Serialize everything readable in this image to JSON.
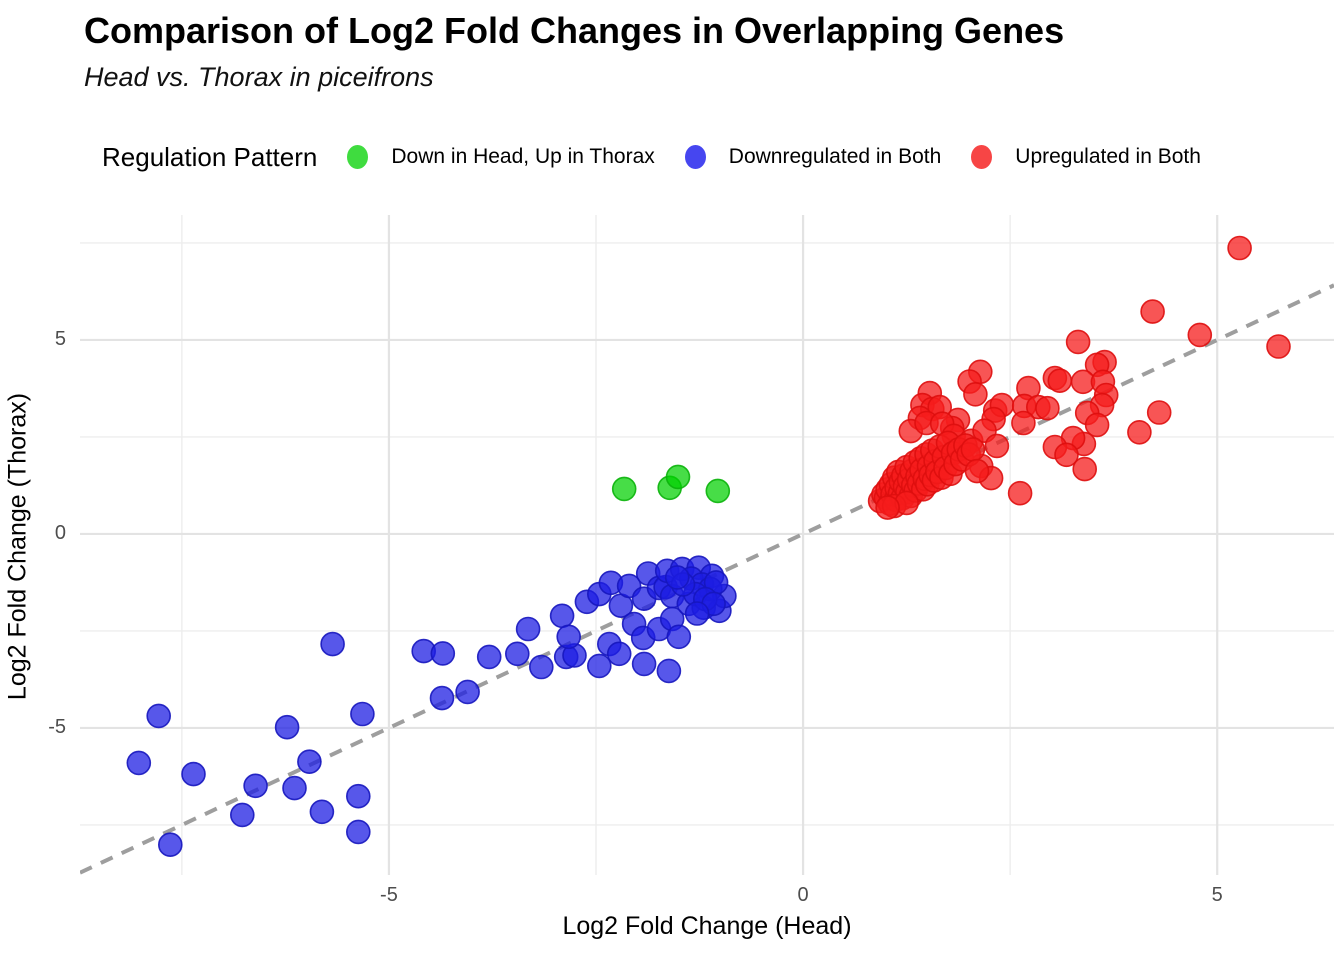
{
  "chart_data": {
    "type": "scatter",
    "title": "Comparison of Log2 Fold Changes in Overlapping Genes",
    "subtitle": "Head vs. Thorax in piceifrons",
    "xlabel": "Log2 Fold Change (Head)",
    "ylabel": "Log2 Fold Change (Thorax)",
    "xlim": [
      -8.73,
      6.41
    ],
    "ylim": [
      -8.79,
      8.22
    ],
    "x_major_breaks": [
      -5,
      0,
      5
    ],
    "x_minor_breaks": [
      -7.5,
      -2.5,
      2.5
    ],
    "y_major_breaks": [
      -5,
      0,
      5
    ],
    "y_minor_breaks": [
      -7.5,
      -2.5,
      2.5,
      7.5
    ],
    "x_tick_labels": [
      "-5",
      "0",
      "5"
    ],
    "y_tick_labels": [
      "5",
      "0",
      "-5"
    ],
    "grid": true,
    "grid_major_color": "#e3e3e3",
    "grid_minor_color": "#ededed",
    "legend": {
      "title": "Regulation Pattern",
      "position": "top"
    },
    "identity_line": {
      "style": "dashed",
      "equation": "y = x",
      "color": "#9e9e9e",
      "width": 4,
      "dash": "13 10"
    },
    "point_radius": 11.5,
    "series": [
      {
        "name": "Down in Head, Up in Thorax",
        "color": "#3fdc3f",
        "fill": "rgba(0,208,0,0.72)",
        "stroke": "rgba(10,178,10,0.9)",
        "points": [
          [
            -2.16,
            1.16
          ],
          [
            -1.61,
            1.19
          ],
          [
            -1.51,
            1.47
          ],
          [
            -1.03,
            1.11
          ]
        ]
      },
      {
        "name": "Downregulated in Both",
        "color": "#4646f0",
        "fill": "rgba(28,28,226,0.74)",
        "stroke": "rgba(22,22,190,0.9)",
        "points": [
          [
            -8.02,
            -5.9
          ],
          [
            -7.78,
            -4.69
          ],
          [
            -7.64,
            -8.01
          ],
          [
            -7.36,
            -6.19
          ],
          [
            -6.77,
            -7.24
          ],
          [
            -6.61,
            -6.49
          ],
          [
            -6.23,
            -4.98
          ],
          [
            -6.14,
            -6.55
          ],
          [
            -5.96,
            -5.87
          ],
          [
            -5.81,
            -7.16
          ],
          [
            -5.68,
            -2.84
          ],
          [
            -5.37,
            -6.76
          ],
          [
            -5.37,
            -7.68
          ],
          [
            -5.32,
            -4.64
          ],
          [
            -4.58,
            -3.02
          ],
          [
            -4.35,
            -3.08
          ],
          [
            -4.36,
            -4.23
          ],
          [
            -4.05,
            -4.07
          ],
          [
            -3.79,
            -3.17
          ],
          [
            -3.45,
            -3.09
          ],
          [
            -3.32,
            -2.45
          ],
          [
            -3.16,
            -3.43
          ],
          [
            -2.91,
            -2.11
          ],
          [
            -2.86,
            -3.17
          ],
          [
            -2.76,
            -3.13
          ],
          [
            -2.83,
            -2.65
          ],
          [
            -2.61,
            -1.75
          ],
          [
            -2.46,
            -1.55
          ],
          [
            -2.32,
            -1.26
          ],
          [
            -2.2,
            -1.85
          ],
          [
            -2.1,
            -1.34
          ],
          [
            -2.04,
            -2.32
          ],
          [
            -2.34,
            -2.84
          ],
          [
            -2.22,
            -3.09
          ],
          [
            -2.46,
            -3.4
          ],
          [
            -1.93,
            -2.68
          ],
          [
            -1.92,
            -1.67
          ],
          [
            -1.92,
            -3.35
          ],
          [
            -1.87,
            -1.02
          ],
          [
            -1.74,
            -1.39
          ],
          [
            -1.74,
            -2.45
          ],
          [
            -1.66,
            -1.37
          ],
          [
            -1.64,
            -0.95
          ],
          [
            -1.62,
            -3.53
          ],
          [
            -1.58,
            -1.6
          ],
          [
            -1.58,
            -2.19
          ],
          [
            -1.5,
            -2.65
          ],
          [
            -1.46,
            -0.9
          ],
          [
            -1.38,
            -1.8
          ],
          [
            -1.26,
            -0.87
          ],
          [
            -1.2,
            -1.9
          ],
          [
            -1.1,
            -1.08
          ],
          [
            -1.01,
            -1.98
          ],
          [
            -0.95,
            -1.6
          ],
          [
            -1.35,
            -1.15
          ],
          [
            -1.22,
            -1.3
          ],
          [
            -1.12,
            -1.42
          ],
          [
            -1.05,
            -1.25
          ],
          [
            -1.3,
            -1.55
          ],
          [
            -1.18,
            -1.68
          ],
          [
            -1.45,
            -1.3
          ],
          [
            -1.52,
            -1.12
          ],
          [
            -1.08,
            -1.8
          ],
          [
            -1.28,
            -2.05
          ]
        ]
      },
      {
        "name": "Upregulated in Both",
        "color": "#f74545",
        "fill": "rgba(246,28,28,0.75)",
        "stroke": "rgba(222,14,14,0.9)",
        "points": [
          [
            5.27,
            7.37
          ],
          [
            4.22,
            5.73
          ],
          [
            4.79,
            5.13
          ],
          [
            5.74,
            4.83
          ],
          [
            3.32,
            4.95
          ],
          [
            3.64,
            4.43
          ],
          [
            3.55,
            4.36
          ],
          [
            2.14,
            4.18
          ],
          [
            3.04,
            4.02
          ],
          [
            3.1,
            3.95
          ],
          [
            2.01,
            3.93
          ],
          [
            3.38,
            3.92
          ],
          [
            3.62,
            3.92
          ],
          [
            2.72,
            3.76
          ],
          [
            2.08,
            3.6
          ],
          [
            1.53,
            3.63
          ],
          [
            3.66,
            3.58
          ],
          [
            1.44,
            3.32
          ],
          [
            1.56,
            3.22
          ],
          [
            1.65,
            3.27
          ],
          [
            2.32,
            3.18
          ],
          [
            2.4,
            3.32
          ],
          [
            2.67,
            3.3
          ],
          [
            2.84,
            3.27
          ],
          [
            2.95,
            3.24
          ],
          [
            3.61,
            3.32
          ],
          [
            4.3,
            3.13
          ],
          [
            3.43,
            3.12
          ],
          [
            3.55,
            2.81
          ],
          [
            4.06,
            2.62
          ],
          [
            2.3,
            2.96
          ],
          [
            2.66,
            2.86
          ],
          [
            1.41,
            2.99
          ],
          [
            1.87,
            2.94
          ],
          [
            1.8,
            2.73
          ],
          [
            3.39,
            2.32
          ],
          [
            3.26,
            2.47
          ],
          [
            3.04,
            2.24
          ],
          [
            3.18,
            2.04
          ],
          [
            3.4,
            1.67
          ],
          [
            2.62,
            1.05
          ],
          [
            1.3,
            2.65
          ],
          [
            1.49,
            2.86
          ],
          [
            1.68,
            2.84
          ],
          [
            1.82,
            2.53
          ],
          [
            2.03,
            2.4
          ],
          [
            2.19,
            2.66
          ],
          [
            2.34,
            2.27
          ],
          [
            2.15,
            1.75
          ],
          [
            2.27,
            1.44
          ],
          [
            0.93,
            0.85
          ],
          [
            0.97,
            1.02
          ],
          [
            1.0,
            0.93
          ],
          [
            1.02,
            1.15
          ],
          [
            1.05,
            0.78
          ],
          [
            1.06,
            1.28
          ],
          [
            1.08,
            1.02
          ],
          [
            1.1,
            1.45
          ],
          [
            1.12,
            0.88
          ],
          [
            1.13,
            1.18
          ],
          [
            1.15,
            1.6
          ],
          [
            1.17,
            1.05
          ],
          [
            1.18,
            1.35
          ],
          [
            1.2,
            0.92
          ],
          [
            1.21,
            1.5
          ],
          [
            1.23,
            1.22
          ],
          [
            1.25,
            1.72
          ],
          [
            1.26,
            1.08
          ],
          [
            1.28,
            1.4
          ],
          [
            1.3,
            0.98
          ],
          [
            1.31,
            1.62
          ],
          [
            1.33,
            1.25
          ],
          [
            1.35,
            1.85
          ],
          [
            1.36,
            1.12
          ],
          [
            1.38,
            1.48
          ],
          [
            1.4,
            1.3
          ],
          [
            1.42,
            1.95
          ],
          [
            1.43,
            1.65
          ],
          [
            1.45,
            1.15
          ],
          [
            1.47,
            1.42
          ],
          [
            1.49,
            2.05
          ],
          [
            1.5,
            1.28
          ],
          [
            1.52,
            1.75
          ],
          [
            1.54,
            1.52
          ],
          [
            1.56,
            2.15
          ],
          [
            1.58,
            1.38
          ],
          [
            1.6,
            1.88
          ],
          [
            1.62,
            1.6
          ],
          [
            1.65,
            2.25
          ],
          [
            1.67,
            1.45
          ],
          [
            1.7,
            1.98
          ],
          [
            1.72,
            1.7
          ],
          [
            1.75,
            2.35
          ],
          [
            1.78,
            1.55
          ],
          [
            1.81,
            2.08
          ],
          [
            1.84,
            1.8
          ],
          [
            1.88,
            2.18
          ],
          [
            1.92,
            1.92
          ],
          [
            1.96,
            2.28
          ],
          [
            2.0,
            2.05
          ],
          [
            2.05,
            2.18
          ],
          [
            2.1,
            1.62
          ],
          [
            1.1,
            0.72
          ],
          [
            1.25,
            0.8
          ],
          [
            1.02,
            0.68
          ]
        ]
      }
    ]
  }
}
